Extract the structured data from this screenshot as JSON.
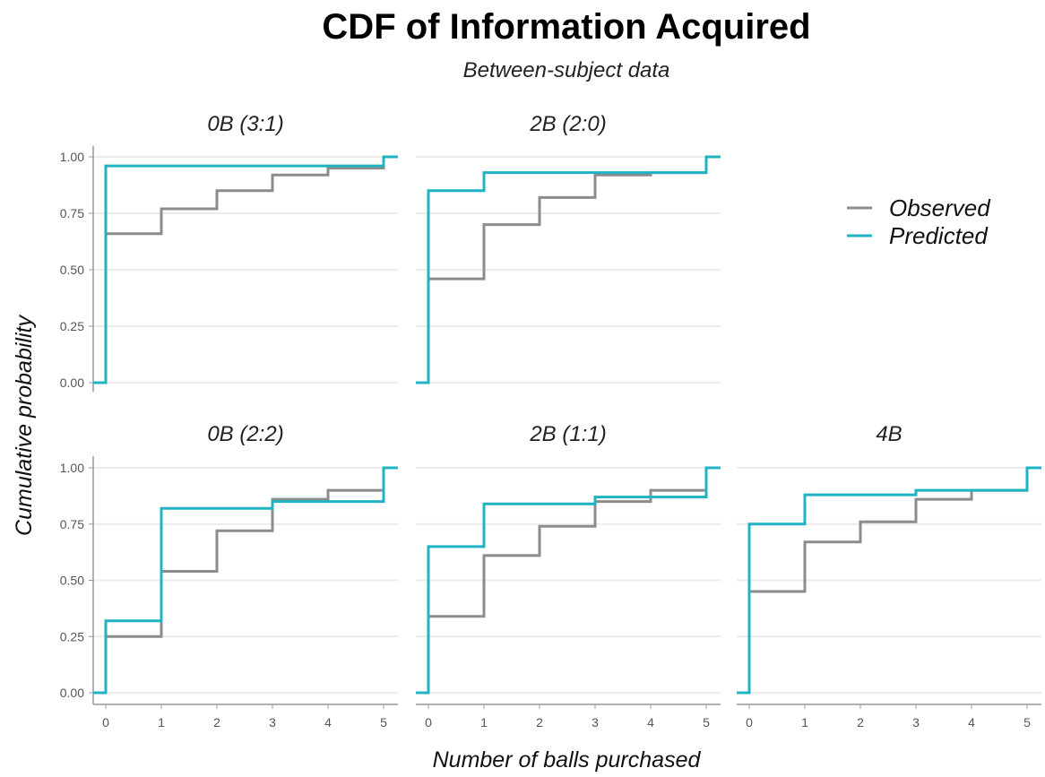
{
  "chart_data": {
    "type": "line",
    "step": true,
    "title": "CDF of Information Acquired",
    "subtitle": "Between-subject data",
    "xlabel": "Number of balls purchased",
    "ylabel": "Cumulative probability",
    "xlim": [
      0,
      5
    ],
    "ylim": [
      0,
      1
    ],
    "x_ticks": [
      "0",
      "1",
      "2",
      "3",
      "4",
      "5"
    ],
    "y_ticks": [
      "0.00",
      "0.25",
      "0.50",
      "0.75",
      "1.00"
    ],
    "grid": "horizontal",
    "legend": {
      "position": "right",
      "entries": [
        {
          "name": "Observed",
          "color": "#8c8c8c"
        },
        {
          "name": "Predicted",
          "color": "#1fb3c4"
        }
      ]
    },
    "panels": [
      {
        "title": "0B  (3:1)",
        "x": [
          0,
          1,
          2,
          3,
          4,
          5
        ],
        "series": [
          {
            "name": "Observed",
            "values": [
              0.66,
              0.77,
              0.85,
              0.92,
              0.95,
              1.0
            ]
          },
          {
            "name": "Predicted",
            "values": [
              0.96,
              0.96,
              0.96,
              0.96,
              0.96,
              1.0
            ]
          }
        ]
      },
      {
        "title": "2B  (2:0)",
        "x": [
          0,
          1,
          2,
          3,
          4,
          5
        ],
        "series": [
          {
            "name": "Observed",
            "values": [
              0.46,
              0.7,
              0.82,
              0.92,
              0.93,
              1.0
            ]
          },
          {
            "name": "Predicted",
            "values": [
              0.85,
              0.93,
              0.93,
              0.93,
              0.93,
              1.0
            ]
          }
        ]
      },
      {
        "title": "0B  (2:2)",
        "x": [
          0,
          1,
          2,
          3,
          4,
          5
        ],
        "series": [
          {
            "name": "Observed",
            "values": [
              0.25,
              0.54,
              0.72,
              0.86,
              0.9,
              1.0
            ]
          },
          {
            "name": "Predicted",
            "values": [
              0.32,
              0.82,
              0.82,
              0.85,
              0.85,
              1.0
            ]
          }
        ]
      },
      {
        "title": "2B  (1:1)",
        "x": [
          0,
          1,
          2,
          3,
          4,
          5
        ],
        "series": [
          {
            "name": "Observed",
            "values": [
              0.34,
              0.61,
              0.74,
              0.85,
              0.9,
              1.0
            ]
          },
          {
            "name": "Predicted",
            "values": [
              0.65,
              0.84,
              0.84,
              0.87,
              0.87,
              1.0
            ]
          }
        ]
      },
      {
        "title": "4B",
        "x": [
          0,
          1,
          2,
          3,
          4,
          5
        ],
        "series": [
          {
            "name": "Observed",
            "values": [
              0.45,
              0.67,
              0.76,
              0.86,
              0.9,
              1.0
            ]
          },
          {
            "name": "Predicted",
            "values": [
              0.75,
              0.88,
              0.88,
              0.9,
              0.9,
              1.0
            ]
          }
        ]
      }
    ]
  }
}
